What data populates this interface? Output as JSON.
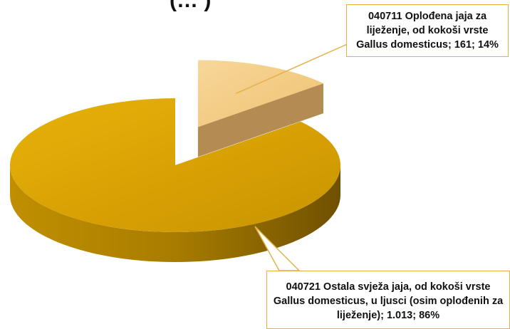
{
  "chart_data": {
    "type": "pie",
    "title": "(… )",
    "slices": [
      {
        "code": "040711",
        "label": "040711 Oplođena jaja za liježenje, od kokoši vrste Gallus domesticus; 161; 14%",
        "value": 161,
        "value_label": "161",
        "percent": 14,
        "color": "#f3cd84",
        "side_color": "#b48b52",
        "exploded": true
      },
      {
        "code": "040721",
        "label": "040721 Ostala svježa jaja, od kokoši vrste Gallus domesticus, u ljusci (osim oplođenih za liježenje); 1.013; 86%",
        "value": 1013,
        "value_label": "1.013",
        "percent": 86,
        "color": "#dda400",
        "side_color": "#9e7400",
        "exploded": false
      }
    ],
    "style": "3d-exploded-pie"
  }
}
